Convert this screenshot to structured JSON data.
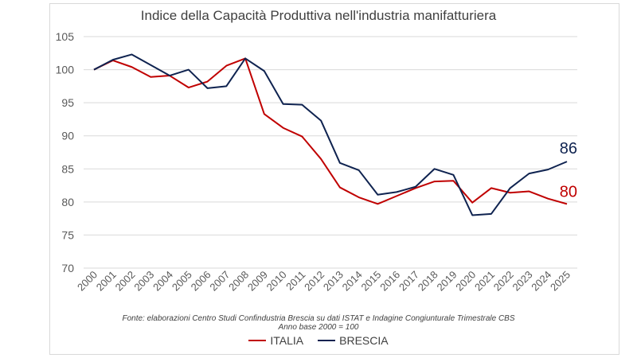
{
  "chart_data": {
    "type": "line",
    "title": "Indice della Capacità Produttiva nell'industria manifatturiera",
    "x": [
      "2000",
      "2001",
      "2002",
      "2003",
      "2004",
      "2005",
      "2006",
      "2007",
      "2008",
      "2009",
      "2010",
      "2011",
      "2012",
      "2013",
      "2014",
      "2015",
      "2016",
      "2017",
      "2018",
      "2019",
      "2020",
      "2021",
      "2022",
      "2023",
      "2024",
      "2025"
    ],
    "yticks": [
      "70",
      "75",
      "80",
      "85",
      "90",
      "95",
      "100",
      "105"
    ],
    "ylim": [
      70,
      105
    ],
    "grid": true,
    "legend": "bottom",
    "series": [
      {
        "name": "ITALIA",
        "color": "#c00000",
        "end_label": "80",
        "values": [
          100,
          101.4,
          100.4,
          98.9,
          99.1,
          97.3,
          98.2,
          100.6,
          101.7,
          93.3,
          91.2,
          89.9,
          86.5,
          82.2,
          80.7,
          79.7,
          80.9,
          82.1,
          83.1,
          83.2,
          79.9,
          82.1,
          81.4,
          81.6,
          80.5,
          79.7
        ]
      },
      {
        "name": "BRESCIA",
        "color": "#0f2350",
        "end_label": "86",
        "values": [
          100,
          101.5,
          102.3,
          100.7,
          99.1,
          100.0,
          97.2,
          97.5,
          101.7,
          99.8,
          94.8,
          94.7,
          92.3,
          85.9,
          84.8,
          81.1,
          81.5,
          82.3,
          85.0,
          84.1,
          78.0,
          78.2,
          82.1,
          84.3,
          84.9,
          86.1
        ]
      }
    ],
    "source_note": "Fonte: elaborazioni Centro Studi Confindustria Brescia su dati ISTAT e Indagine Congiunturale Trimestrale CBS",
    "base_note": "Anno base 2000 = 100"
  }
}
